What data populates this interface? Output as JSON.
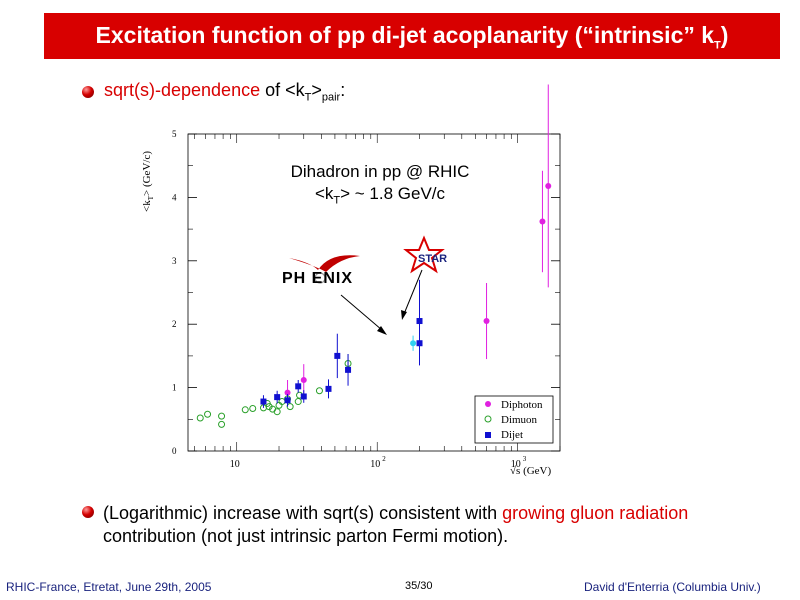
{
  "slide": {
    "title": "Excitation function of pp di-jet acoplanarity (“intrinsic” k",
    "title_sub": "T",
    "title_end": ")",
    "bullet1": {
      "a": "sqrt(s)-dependence",
      "b": " of <k",
      "b_sub": "T",
      "c": ">",
      "c_sub": "pair",
      "d": ":"
    },
    "bullet2": {
      "a": "(Logarithmic) increase with sqrt(s) consistent with ",
      "b": "growing gluon radiation",
      "c": " contribution (not just intrinsic parton Fermi motion)."
    },
    "footer_left": "RHIC-France, Etretat, June 29th, 2005",
    "footer_mid": "35/30",
    "footer_right": "David d'Enterria (Columbia Univ.)",
    "colors": {
      "title_bg": "#d80000",
      "accent_red": "#d80000",
      "footer_blue": "#1a237e"
    }
  },
  "chart_data": {
    "type": "scatter",
    "xscale": "log",
    "xlim": [
      4.5,
      2000
    ],
    "ylim": [
      0,
      5
    ],
    "xlabel": "√s (GeV)",
    "ylabel_main": "<k",
    "ylabel_sub": "T",
    "ylabel_end": "> (GeV/c)",
    "xtick_values": [
      10,
      100,
      1000
    ],
    "xtick_bases": [
      "10",
      "10",
      "10"
    ],
    "xtick_exps": [
      "",
      "2",
      "3"
    ],
    "yticks": [
      0,
      1,
      2,
      3,
      4,
      5
    ],
    "annotation_line1": "Dihadron in pp @ RHIC",
    "annotation_line2_a": "<k",
    "annotation_line2_sub": "T",
    "annotation_line2_b": "> ~ 1.8 GeV/c",
    "phenix_label": "PH ENIX",
    "star_label": "STAR",
    "series": [
      {
        "name": "Diphoton",
        "marker": "filled-circle",
        "color": "#e020e0",
        "points": [
          [
            23,
            0.92,
            0.2
          ],
          [
            30,
            1.12,
            0.25
          ],
          [
            600,
            2.05,
            0.6
          ],
          [
            1500,
            3.62,
            0.8
          ],
          [
            1650,
            4.18,
            1.6
          ]
        ]
      },
      {
        "name": "Dimuon",
        "marker": "open-circle",
        "color": "#2aa02a",
        "points": [
          [
            5.5,
            0.52,
            0
          ],
          [
            6.2,
            0.58,
            0
          ],
          [
            7.8,
            0.42,
            0
          ],
          [
            7.8,
            0.55,
            0
          ],
          [
            11.5,
            0.65,
            0
          ],
          [
            13,
            0.67,
            0
          ],
          [
            15.5,
            0.68,
            0
          ],
          [
            16.5,
            0.75,
            0
          ],
          [
            17,
            0.7,
            0
          ],
          [
            18,
            0.66,
            0
          ],
          [
            19.4,
            0.62,
            0
          ],
          [
            20,
            0.72,
            0
          ],
          [
            21,
            0.78,
            0
          ],
          [
            23,
            0.82,
            0
          ],
          [
            24,
            0.7,
            0
          ],
          [
            27.4,
            0.78,
            0
          ],
          [
            28,
            0.88,
            0
          ],
          [
            38.8,
            0.95,
            0
          ],
          [
            62,
            1.38,
            0.15
          ]
        ]
      },
      {
        "name": "Dijet",
        "marker": "filled-square",
        "color": "#1010d0",
        "points": [
          [
            15.5,
            0.78,
            0.1
          ],
          [
            19.4,
            0.85,
            0.1
          ],
          [
            23,
            0.8,
            0.1
          ],
          [
            27.4,
            1.02,
            0.1
          ],
          [
            30,
            0.86,
            0.1
          ],
          [
            45,
            0.98,
            0.15
          ],
          [
            52,
            1.5,
            0.35
          ],
          [
            62,
            1.28,
            0.25
          ],
          [
            200,
            1.7,
            0.35
          ],
          [
            200,
            2.05,
            0.65
          ]
        ]
      },
      {
        "name": "",
        "marker": "filled-circle",
        "color": "#30d0f0",
        "points": [
          [
            180,
            1.7,
            0.12
          ]
        ]
      }
    ]
  }
}
